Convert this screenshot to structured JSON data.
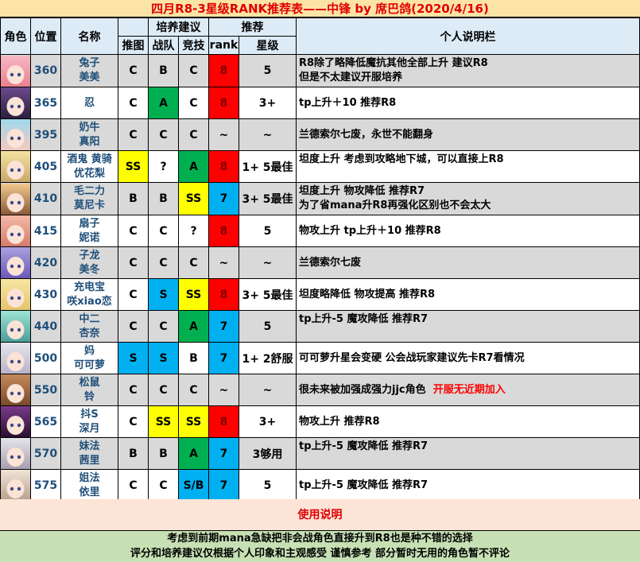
{
  "title": "四月R8-3星级RANK推荐表——中锋  by  席巴鸽(2020/4/16)",
  "headers": {
    "role": "角色",
    "position": "位置",
    "name": "名称",
    "training": "培养建议",
    "recommend": "推荐",
    "notes": "个人说明栏",
    "push": "推图",
    "clan": "战队",
    "arena": "竞技",
    "rank": "rank",
    "star": "星级"
  },
  "colors": {
    "yellow": "#ffff00",
    "green": "#00b050",
    "blue": "#00b0f0",
    "red": "#ff0000",
    "gray_row": "#d9d9d9"
  },
  "rows": [
    {
      "pos": "360",
      "name1": "兔子",
      "name2": "美美",
      "push": "C",
      "clan": "B",
      "arena": "C",
      "rank": "8",
      "star": "5",
      "note1": "R8除了略降低魔抗其他全部上升 建议R8",
      "note2": "但是不太建议开服培养",
      "colors": [
        "",
        "",
        "",
        "red"
      ]
    },
    {
      "pos": "365",
      "name1": "忍",
      "name2": "",
      "push": "C",
      "clan": "A",
      "arena": "C",
      "rank": "8",
      "star": "3+",
      "note1": "tp上升＋10 推荐R8",
      "note2": "",
      "colors": [
        "",
        "green",
        "",
        "red"
      ]
    },
    {
      "pos": "395",
      "name1": "奶牛",
      "name2": "真阳",
      "push": "C",
      "clan": "C",
      "arena": "C",
      "rank": "~",
      "star": "~",
      "note1": "兰德索尔七废，永世不能翻身",
      "note2": "",
      "colors": [
        "",
        "",
        "",
        ""
      ]
    },
    {
      "pos": "405",
      "name1": "酒鬼 黄骑",
      "name2": "优花梨",
      "push": "SS",
      "clan": "?",
      "arena": "A",
      "rank": "8",
      "star": "1+ 5最佳",
      "note1": "坦度上升 考虑到攻略地下城，可以直接上R8",
      "note2": "",
      "colors": [
        "yellow",
        "",
        "green",
        "red"
      ]
    },
    {
      "pos": "410",
      "name1": "毛二力",
      "name2": "莫尼卡",
      "push": "B",
      "clan": "B",
      "arena": "SS",
      "rank": "7",
      "star": "3+ 5最佳",
      "note1": "坦度上升 物攻降低 推荐R7",
      "note2": "为了省mana升R8再强化区别也不会太大",
      "colors": [
        "",
        "",
        "yellow",
        "blue"
      ]
    },
    {
      "pos": "415",
      "name1": "扇子",
      "name2": "妮诺",
      "push": "C",
      "clan": "C",
      "arena": "?",
      "rank": "8",
      "star": "5",
      "note1": "物攻上升 tp上升＋10 推荐R8",
      "note2": "",
      "colors": [
        "",
        "",
        "",
        "red"
      ]
    },
    {
      "pos": "420",
      "name1": "子龙",
      "name2": "美冬",
      "push": "C",
      "clan": "C",
      "arena": "C",
      "rank": "~",
      "star": "~",
      "note1": "兰德索尔七废",
      "note2": "",
      "colors": [
        "",
        "",
        "",
        ""
      ]
    },
    {
      "pos": "430",
      "name1": "充电宝",
      "name2": "咲xiao恋",
      "push": "C",
      "clan": "S",
      "arena": "SS",
      "rank": "8",
      "star": "3+ 5最佳",
      "note1": "坦度略降低 物攻提高 推荐R8",
      "note2": "",
      "colors": [
        "",
        "blue",
        "yellow",
        "red"
      ]
    },
    {
      "pos": "440",
      "name1": "中二",
      "name2": "杏奈",
      "push": "C",
      "clan": "C",
      "arena": "A",
      "rank": "7",
      "star": "5",
      "note1": "tp上升-5 魔攻降低 推荐R7",
      "note2": "",
      "colors": [
        "",
        "",
        "green",
        "blue"
      ]
    },
    {
      "pos": "500",
      "name1": "妈",
      "name2": "可可萝",
      "push": "S",
      "clan": "S",
      "arena": "B",
      "rank": "7",
      "star": "1+ 2舒服",
      "note1": "可可萝升星会变硬 公会战玩家建议先卡R7看情况",
      "note2": "",
      "colors": [
        "blue",
        "blue",
        "",
        "blue"
      ]
    },
    {
      "pos": "550",
      "name1": "松鼠",
      "name2": "铃",
      "push": "C",
      "clan": "C",
      "arena": "C",
      "rank": "~",
      "star": "~",
      "note1": "很未来被加强成强力jjc角色",
      "note_red": "开服无近期加入",
      "note2": "",
      "colors": [
        "",
        "",
        "",
        ""
      ]
    },
    {
      "pos": "565",
      "name1": "抖S",
      "name2": "深月",
      "push": "C",
      "clan": "SS",
      "arena": "SS",
      "rank": "8",
      "star": "3+",
      "note1": "物攻上升  推荐R8",
      "note2": "",
      "colors": [
        "",
        "yellow",
        "yellow",
        "red"
      ]
    },
    {
      "pos": "570",
      "name1": "妹法",
      "name2": "茜里",
      "push": "B",
      "clan": "B",
      "arena": "A",
      "rank": "7",
      "star": "3够用",
      "note1": "tp上升-5 魔攻降低 推荐R7",
      "note2": "",
      "colors": [
        "",
        "",
        "green",
        "blue"
      ]
    },
    {
      "pos": "575",
      "name1": "姐法",
      "name2": "依里",
      "push": "C",
      "clan": "C",
      "arena": "S/B",
      "rank": "7",
      "star": "5",
      "note1": "tp上升-5 魔攻降低 推荐R7",
      "note2": "",
      "colors": [
        "",
        "",
        "blue",
        "blue"
      ]
    }
  ],
  "usage": "使用说明",
  "footer": [
    "考虑到前期mana急缺把非会战角色直接升到R8也是种不错的选择",
    "评分和培养建议仅根据个人印象和主观感受 谨慎参考 部分暂时无用的角色暂不评论"
  ]
}
